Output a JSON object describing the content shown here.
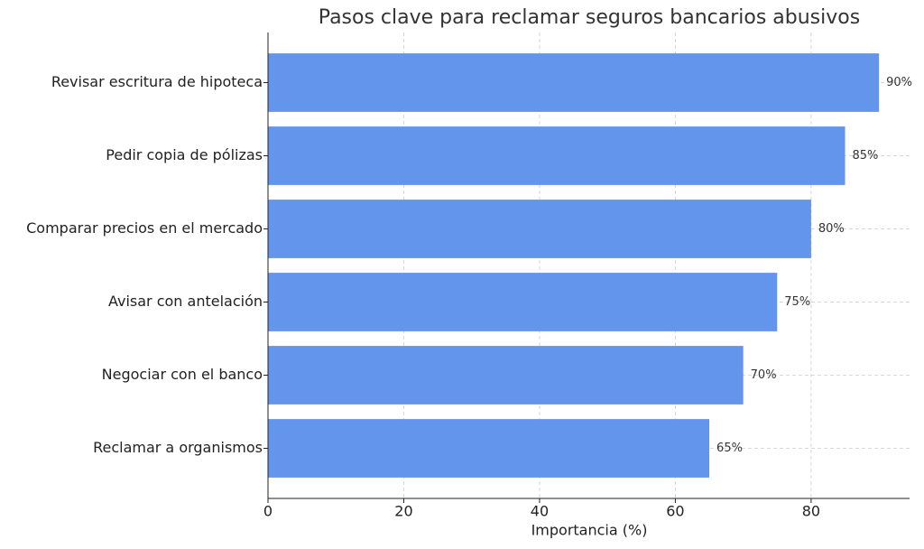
{
  "chart_data": {
    "type": "bar",
    "orientation": "horizontal",
    "title": "Pasos clave para reclamar seguros bancarios abusivos",
    "x_label": "Importancia (%)",
    "categories": [
      "Revisar escritura de hipoteca",
      "Pedir copia de pólizas",
      "Comparar precios en el mercado",
      "Avisar con antelación",
      "Negociar con el banco",
      "Reclamar a organismos"
    ],
    "values": [
      90,
      85,
      80,
      75,
      70,
      65
    ],
    "value_labels": [
      "90%",
      "85%",
      "80%",
      "75%",
      "70%",
      "65%"
    ],
    "color": "#6495ed",
    "xlim": [
      0,
      94.5
    ],
    "xticks": [
      0,
      20,
      40,
      60,
      80
    ],
    "grid": true
  }
}
